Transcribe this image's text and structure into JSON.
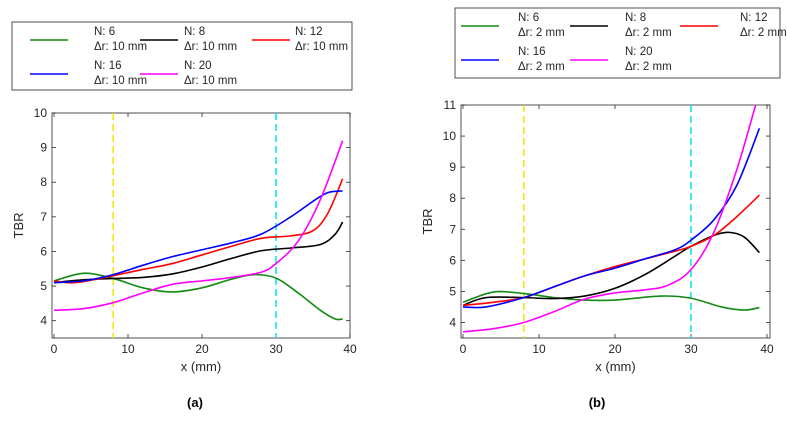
{
  "chart_data": [
    {
      "type": "line",
      "panel_label": "(a)",
      "xlabel": "x (mm)",
      "ylabel": "TBR",
      "xlim": [
        0,
        40
      ],
      "ylim": [
        3.5,
        10
      ],
      "xticks": [
        0,
        10,
        20,
        30,
        40
      ],
      "yticks": [
        4,
        5,
        6,
        7,
        8,
        9,
        10
      ],
      "grid": false,
      "legend_placement": "above",
      "vlines": [
        {
          "x": 8,
          "color": "#f2e600",
          "style": "dashed"
        },
        {
          "x": 30,
          "color": "#00e0f0",
          "style": "dashed"
        }
      ],
      "series": [
        {
          "name": "N: 6",
          "sub": "Δr: 10 mm",
          "color": "#128a12",
          "x": [
            0,
            4,
            8,
            12,
            16,
            20,
            24,
            27,
            30,
            33,
            36,
            38,
            39
          ],
          "y": [
            5.15,
            5.37,
            5.22,
            4.95,
            4.83,
            4.95,
            5.2,
            5.33,
            5.23,
            4.8,
            4.3,
            4.05,
            4.05
          ]
        },
        {
          "name": "N: 8",
          "sub": "Δr: 10 mm",
          "color": "#000000",
          "x": [
            0,
            4,
            8,
            12,
            16,
            20,
            24,
            28,
            32,
            36,
            38,
            39
          ],
          "y": [
            5.1,
            5.18,
            5.22,
            5.25,
            5.35,
            5.55,
            5.8,
            6.02,
            6.1,
            6.2,
            6.5,
            6.85
          ]
        },
        {
          "name": "N: 12",
          "sub": "Δr: 10 mm",
          "color": "#ff0000",
          "x": [
            0,
            3,
            8,
            12,
            16,
            20,
            24,
            28,
            32,
            35,
            37,
            39
          ],
          "y": [
            5.15,
            5.1,
            5.3,
            5.48,
            5.65,
            5.9,
            6.15,
            6.38,
            6.45,
            6.6,
            7.1,
            8.1
          ]
        },
        {
          "name": "N: 16",
          "sub": "Δr: 10 mm",
          "color": "#0000ff",
          "x": [
            0,
            4,
            8,
            12,
            16,
            20,
            24,
            28,
            32,
            35,
            37,
            39
          ],
          "y": [
            5.1,
            5.15,
            5.33,
            5.6,
            5.85,
            6.05,
            6.25,
            6.5,
            7.0,
            7.45,
            7.7,
            7.75
          ]
        },
        {
          "name": "N: 20",
          "sub": "Δr: 10 mm",
          "color": "#ff00ff",
          "x": [
            0,
            4,
            8,
            12,
            16,
            20,
            24,
            28,
            30,
            33,
            36,
            39
          ],
          "y": [
            4.3,
            4.35,
            4.52,
            4.8,
            5.05,
            5.15,
            5.25,
            5.4,
            5.65,
            6.3,
            7.5,
            9.2
          ]
        }
      ]
    },
    {
      "type": "line",
      "panel_label": "(b)",
      "xlabel": "x (mm)",
      "ylabel": "TBR",
      "xlim": [
        0,
        40
      ],
      "ylim": [
        3.5,
        11
      ],
      "xticks": [
        0,
        10,
        20,
        30,
        40
      ],
      "yticks": [
        4,
        5,
        6,
        7,
        8,
        9,
        10,
        11
      ],
      "grid": false,
      "legend_placement": "above",
      "vlines": [
        {
          "x": 8,
          "color": "#f2e600",
          "style": "dashed"
        },
        {
          "x": 30,
          "color": "#00e0f0",
          "style": "dashed"
        }
      ],
      "series": [
        {
          "name": "N: 6",
          "sub": "Δr: 2 mm",
          "color": "#128a12",
          "x": [
            0,
            4,
            8,
            12,
            16,
            20,
            26,
            30,
            34,
            37,
            39
          ],
          "y": [
            4.65,
            4.98,
            4.93,
            4.8,
            4.72,
            4.72,
            4.85,
            4.78,
            4.5,
            4.4,
            4.48
          ]
        },
        {
          "name": "N: 8",
          "sub": "Δr: 2 mm",
          "color": "#000000",
          "x": [
            0,
            3,
            8,
            12,
            16,
            20,
            24,
            28,
            30,
            33,
            35,
            37,
            39
          ],
          "y": [
            4.55,
            4.8,
            4.8,
            4.77,
            4.85,
            5.1,
            5.55,
            6.15,
            6.45,
            6.8,
            6.9,
            6.75,
            6.25
          ]
        },
        {
          "name": "N: 12",
          "sub": "Δr: 2 mm",
          "color": "#ff0000",
          "x": [
            0,
            4,
            8,
            12,
            16,
            20,
            24,
            28,
            30,
            33,
            36,
            39
          ],
          "y": [
            4.55,
            4.65,
            4.8,
            5.15,
            5.5,
            5.8,
            6.05,
            6.3,
            6.45,
            6.8,
            7.4,
            8.1
          ]
        },
        {
          "name": "N: 16",
          "sub": "Δr: 2 mm",
          "color": "#0000ff",
          "x": [
            0,
            3,
            8,
            12,
            16,
            20,
            24,
            28,
            30,
            33,
            36,
            39
          ],
          "y": [
            4.5,
            4.5,
            4.8,
            5.15,
            5.5,
            5.75,
            6.05,
            6.35,
            6.65,
            7.3,
            8.4,
            10.25
          ]
        },
        {
          "name": "N: 20",
          "sub": "Δr: 2 mm",
          "color": "#ff00ff",
          "x": [
            0,
            4,
            8,
            12,
            16,
            20,
            24,
            27,
            30,
            33,
            36,
            38.5
          ],
          "y": [
            3.7,
            3.8,
            4.0,
            4.35,
            4.75,
            4.95,
            5.05,
            5.2,
            5.7,
            6.9,
            8.9,
            11
          ]
        }
      ]
    }
  ]
}
